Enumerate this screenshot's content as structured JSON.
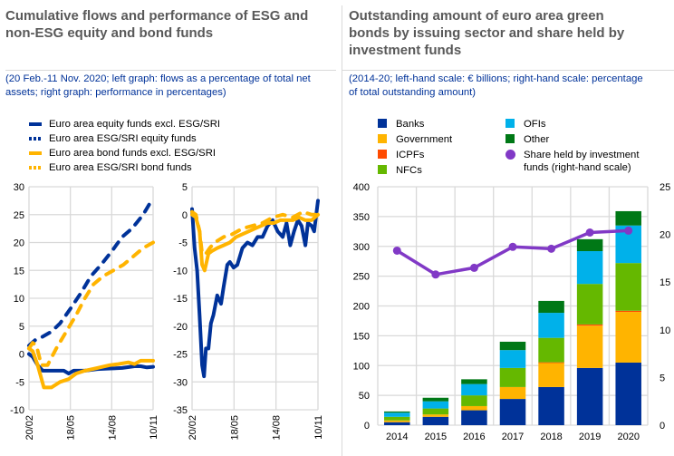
{
  "left_panel": {
    "title_line1": "Cumulative flows and performance of ESG and",
    "title_line2": "non-ESG equity and bond funds",
    "subtitle_line1": "(20 Feb.-11 Nov. 2020; left graph: flows as a percentage of total net",
    "subtitle_line2": "assets; right graph: performance in percentages)",
    "legend": [
      {
        "label": "Euro area equity funds excl. ESG/SRI",
        "style": "solid",
        "color": "#003299"
      },
      {
        "label": "Euro area ESG/SRI equity funds",
        "style": "dotted",
        "color": "#003299"
      },
      {
        "label": "Euro area bond funds excl. ESG/SRI",
        "style": "solid",
        "color": "#FFB400"
      },
      {
        "label": "Euro area ESG/SRI bond funds",
        "style": "dotted",
        "color": "#FFB400"
      }
    ]
  },
  "right_panel": {
    "title_line1": "Outstanding amount of euro area green",
    "title_line2": "bonds by issuing sector and share held by",
    "title_line3": "investment funds",
    "subtitle_line1": "(2014-20; left-hand scale: € billions; right-hand scale: percentage",
    "subtitle_line2": "of total outstanding amount)",
    "legend": [
      {
        "label": "Banks",
        "color": "#003299",
        "shape": "square"
      },
      {
        "label": "Government",
        "color": "#FFB400",
        "shape": "square"
      },
      {
        "label": "ICPFs",
        "color": "#FF4B00",
        "shape": "square"
      },
      {
        "label": "NFCs",
        "color": "#65B800",
        "shape": "square"
      },
      {
        "label": "OFIs",
        "color": "#00B1EA",
        "shape": "square"
      },
      {
        "label": "Other",
        "color": "#007816",
        "shape": "square"
      },
      {
        "label": "Share held by investment",
        "label2": "funds (right-hand scale)",
        "color": "#8139C6",
        "shape": "circle"
      }
    ]
  },
  "chart_data": [
    {
      "type": "line",
      "title": "Flows as a percentage of total net assets",
      "ylim": [
        -10,
        30
      ],
      "yticks": [
        "30",
        "25",
        "20",
        "15",
        "10",
        "5",
        "0",
        "-5",
        "-10"
      ],
      "xticks": [
        "20/02",
        "18/05",
        "14/08",
        "10/11"
      ],
      "grid": true,
      "series": [
        {
          "name": "Euro area equity funds excl. ESG/SRI",
          "color": "#003299",
          "dash": "solid",
          "x": [
            0,
            0.03,
            0.07,
            0.11,
            0.2,
            0.28,
            0.32,
            0.36,
            0.45,
            0.55,
            0.65,
            0.75,
            0.85,
            0.9,
            0.95,
            1.0
          ],
          "values": [
            0,
            -0.5,
            -2,
            -3,
            -3,
            -3,
            -3.5,
            -3,
            -3,
            -2.7,
            -2.6,
            -2.5,
            -2.2,
            -2.2,
            -2.4,
            -2.3
          ]
        },
        {
          "name": "Euro area ESG/SRI equity funds",
          "color": "#003299",
          "dash": "dotted",
          "x": [
            0,
            0.05,
            0.1,
            0.18,
            0.25,
            0.33,
            0.42,
            0.5,
            0.58,
            0.67,
            0.75,
            0.83,
            0.92,
            1.0
          ],
          "values": [
            1.5,
            2.5,
            3,
            4,
            5.5,
            8,
            11,
            14,
            16,
            18.5,
            21,
            22.5,
            25,
            28
          ]
        },
        {
          "name": "Euro area bond funds excl. ESG/SRI",
          "color": "#FFB400",
          "dash": "solid",
          "x": [
            0,
            0.03,
            0.07,
            0.12,
            0.18,
            0.25,
            0.32,
            0.38,
            0.45,
            0.55,
            0.65,
            0.72,
            0.8,
            0.85,
            0.9,
            1.0
          ],
          "values": [
            1,
            0.5,
            -2,
            -6,
            -6,
            -5,
            -4.5,
            -3.5,
            -3,
            -2.5,
            -2,
            -1.8,
            -1.5,
            -1.8,
            -1.2,
            -1.2
          ]
        },
        {
          "name": "Euro area ESG/SRI bond funds",
          "color": "#FFB400",
          "dash": "dotted",
          "x": [
            0,
            0.03,
            0.06,
            0.1,
            0.15,
            0.22,
            0.3,
            0.38,
            0.45,
            0.52,
            0.6,
            0.68,
            0.76,
            0.84,
            0.92,
            1.0
          ],
          "values": [
            1,
            2,
            1.5,
            -2,
            -2,
            1,
            4,
            7,
            10,
            12.5,
            14,
            15,
            16,
            17.5,
            19,
            20
          ]
        }
      ]
    },
    {
      "type": "line",
      "title": "Performance in percentages",
      "ylim": [
        -35,
        5
      ],
      "yticks": [
        "5",
        "0",
        "-5",
        "-10",
        "-15",
        "-20",
        "-25",
        "-30",
        "-35"
      ],
      "xticks": [
        "20/02",
        "18/05",
        "14/08",
        "10/11"
      ],
      "grid": true,
      "series": [
        {
          "name": "Euro area equity funds excl. ESG/SRI",
          "color": "#003299",
          "dash": "solid",
          "x": [
            0,
            0.02,
            0.04,
            0.06,
            0.08,
            0.095,
            0.11,
            0.13,
            0.15,
            0.17,
            0.2,
            0.23,
            0.25,
            0.28,
            0.3,
            0.33,
            0.36,
            0.4,
            0.44,
            0.48,
            0.52,
            0.56,
            0.6,
            0.64,
            0.68,
            0.72,
            0.75,
            0.78,
            0.81,
            0.84,
            0.87,
            0.9,
            0.92,
            0.95,
            0.97,
            1.0
          ],
          "values": [
            1,
            -6,
            -10,
            -18,
            -27,
            -29,
            -24,
            -24,
            -19.5,
            -18,
            -14.5,
            -16,
            -13,
            -9,
            -8.5,
            -9.5,
            -9,
            -6,
            -5,
            -5.5,
            -4,
            -4,
            -2,
            -1,
            -3,
            -4,
            -1.5,
            -5.5,
            -3,
            -1,
            -2,
            -5.5,
            -1.5,
            -2,
            -3,
            2.5
          ]
        },
        {
          "name": "Euro area ESG/SRI equity funds",
          "color": "#003299",
          "dash": "dotted",
          "x": [],
          "values": []
        },
        {
          "name": "Euro area bond funds excl. ESG/SRI",
          "color": "#FFB400",
          "dash": "solid",
          "x": [
            0,
            0.03,
            0.06,
            0.08,
            0.1,
            0.13,
            0.16,
            0.2,
            0.25,
            0.3,
            0.35,
            0.4,
            0.45,
            0.5,
            0.55,
            0.6,
            0.65,
            0.7,
            0.75,
            0.8,
            0.85,
            0.9,
            0.95,
            1.0
          ],
          "values": [
            0,
            -0.5,
            -3,
            -9,
            -10,
            -7,
            -6.5,
            -6,
            -5.5,
            -5,
            -4,
            -3.5,
            -3,
            -2.5,
            -2,
            -1.5,
            -1.5,
            -1,
            -1,
            -1,
            -0.5,
            -1,
            -1,
            0
          ]
        },
        {
          "name": "Euro area ESG/SRI bond funds",
          "color": "#FFB400",
          "dash": "dotted",
          "x": [
            0,
            0.03,
            0.06,
            0.08,
            0.11,
            0.14,
            0.18,
            0.25,
            0.32,
            0.4,
            0.48,
            0.56,
            0.64,
            0.72,
            0.8,
            0.88,
            0.95,
            1.0
          ],
          "values": [
            0.5,
            0,
            -3,
            -7,
            -7,
            -6,
            -5,
            -4,
            -3.5,
            -2.5,
            -2,
            -1.5,
            -0.5,
            0,
            -0.5,
            0.5,
            0,
            0
          ]
        }
      ]
    },
    {
      "type": "bar",
      "stacked": true,
      "title": "Outstanding amount of euro area green bonds by issuing sector and share held by investment funds",
      "categories": [
        "2014",
        "2015",
        "2016",
        "2017",
        "2018",
        "2019",
        "2020"
      ],
      "ylim": [
        0,
        400
      ],
      "yticks": [
        "400",
        "350",
        "300",
        "250",
        "200",
        "150",
        "100",
        "50",
        "0"
      ],
      "y2lim": [
        0,
        25
      ],
      "y2ticks": [
        "25",
        "20",
        "15",
        "10",
        "5",
        "0"
      ],
      "grid": true,
      "series": [
        {
          "name": "Banks",
          "color": "#003299",
          "values": [
            5,
            14,
            25,
            44,
            64,
            96,
            105
          ]
        },
        {
          "name": "Government",
          "color": "#FFB400",
          "values": [
            3,
            4,
            7,
            20,
            41,
            71,
            85
          ]
        },
        {
          "name": "ICPFs",
          "color": "#FF4B00",
          "values": [
            0,
            0,
            0,
            0,
            0.5,
            2,
            2
          ]
        },
        {
          "name": "NFCs",
          "color": "#65B800",
          "values": [
            6,
            10,
            18,
            32,
            41,
            68,
            80
          ]
        },
        {
          "name": "OFIs",
          "color": "#00B1EA",
          "values": [
            7,
            12,
            19,
            30,
            42,
            55,
            63
          ]
        },
        {
          "name": "Other",
          "color": "#007816",
          "values": [
            2,
            6,
            8,
            14,
            20,
            20,
            24
          ]
        }
      ],
      "line_series": {
        "name": "Share held by investment funds (right-hand scale)",
        "color": "#8139C6",
        "axis": "right",
        "values": [
          18.3,
          15.8,
          16.5,
          18.7,
          18.5,
          20.2,
          20.4
        ]
      }
    }
  ]
}
